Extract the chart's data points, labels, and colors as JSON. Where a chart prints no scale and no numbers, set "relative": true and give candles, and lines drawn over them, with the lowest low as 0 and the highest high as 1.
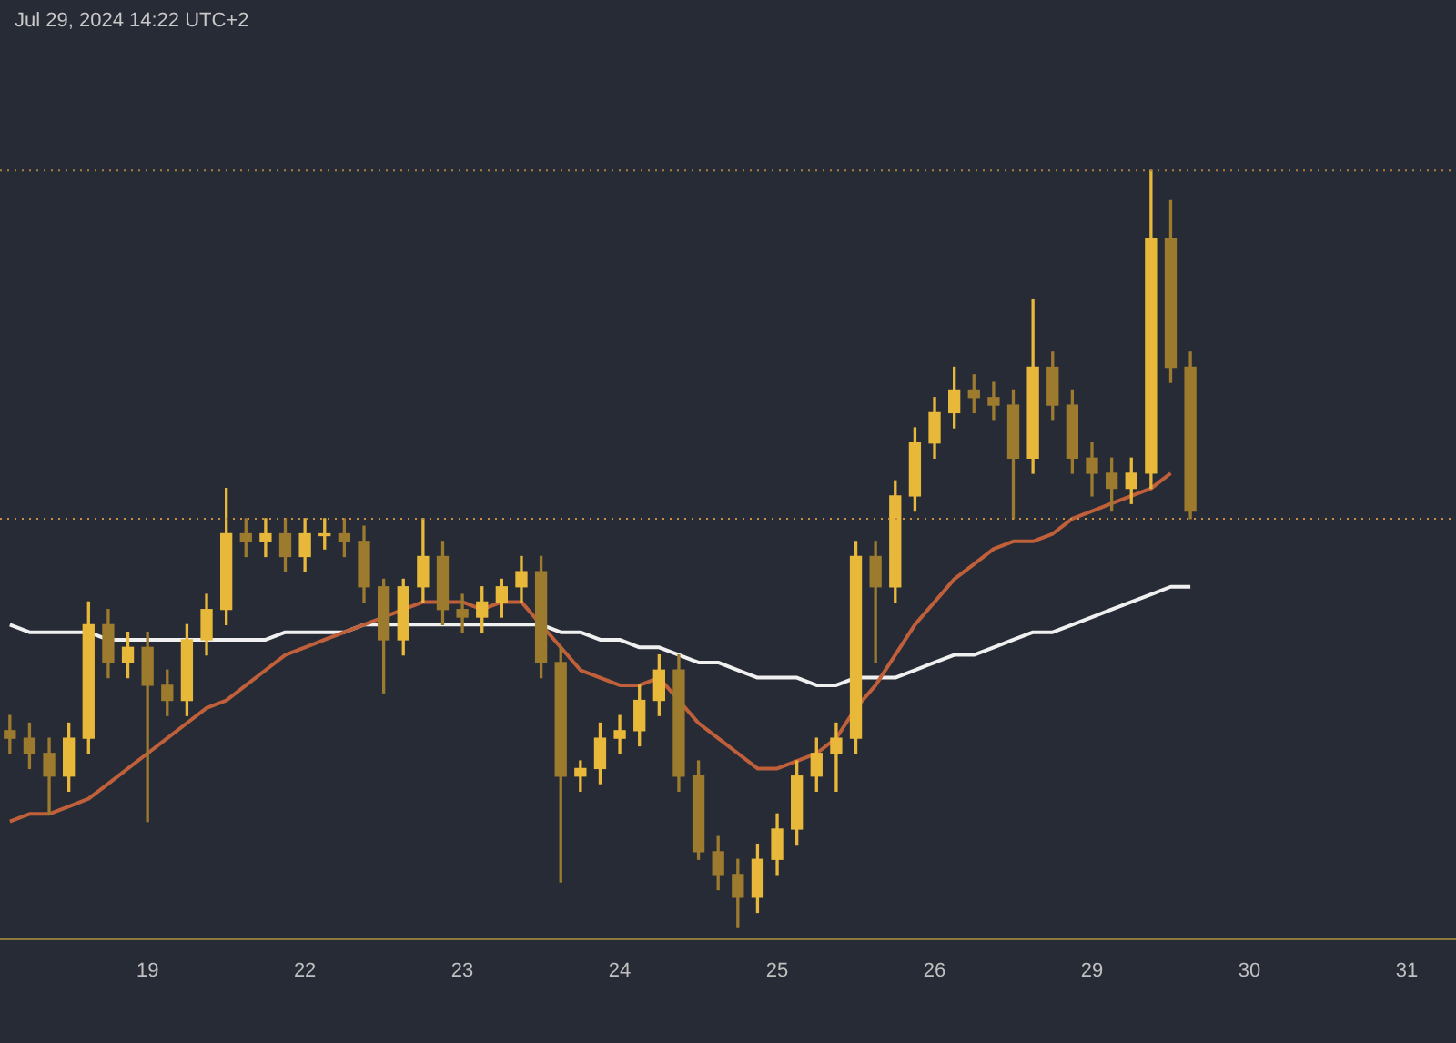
{
  "chart_data": {
    "type": "candlestick",
    "relative": true,
    "colors": [
      "#9c7a2e",
      "#9c7a2e",
      "#9c7a2e",
      "#e8b83a",
      "#e8b83a",
      "#9c7a2e",
      "#e8b83a",
      "#9c7a2e",
      "#9c7a2e",
      "#e8b83a",
      "#e8b83a",
      "#e8b83a",
      "#9c7a2e",
      "#e8b83a",
      "#9c7a2e",
      "#e8b83a",
      "#e8b83a",
      "#9c7a2e",
      "#9c7a2e",
      "#9c7a2e",
      "#e8b83a",
      "#e8b83a",
      "#9c7a2e",
      "#9c7a2e",
      "#e8b83a",
      "#e8b83a",
      "#e8b83a",
      "#9c7a2e",
      "#9c7a2e",
      "#e8b83a",
      "#e8b83a",
      "#e8b83a",
      "#e8b83a",
      "#e8b83a",
      "#9c7a2e",
      "#9c7a2e",
      "#9c7a2e",
      "#9c7a2e",
      "#e8b83a",
      "#e8b83a",
      "#e8b83a",
      "#e8b83a",
      "#e8b83a",
      "#e8b83a",
      "#9c7a2e",
      "#e8b83a",
      "#e8b83a",
      "#e8b83a",
      "#e8b83a",
      "#9c7a2e",
      "#9c7a2e",
      "#9c7a2e",
      "#e8b83a",
      "#9c7a2e",
      "#9c7a2e",
      "#9c7a2e",
      "#9c7a2e",
      "#e8b83a",
      "#e8b83a",
      "#9c7a2e",
      "#9c7a2e",
      null,
      null,
      null,
      null,
      null,
      null,
      null,
      null,
      null,
      null,
      null,
      null,
      null
    ],
    "annotations": [
      "Jul 29, 2024 14:22 UTC+2"
    ],
    "categories": [
      null,
      null,
      null,
      null,
      null,
      null,
      null,
      "19",
      null,
      null,
      null,
      null,
      null,
      null,
      null,
      "22",
      null,
      null,
      null,
      null,
      null,
      null,
      null,
      "23",
      null,
      null,
      null,
      null,
      null,
      null,
      null,
      "24",
      null,
      null,
      null,
      null,
      null,
      null,
      null,
      "25",
      null,
      null,
      null,
      null,
      null,
      null,
      null,
      "26",
      null,
      null,
      null,
      null,
      null,
      null,
      null,
      "29",
      null,
      null,
      null,
      null,
      null,
      null,
      null,
      "30",
      null,
      null,
      null,
      null,
      null,
      null,
      null,
      "31",
      null,
      null
    ],
    "ohlc": [
      [
        0.26,
        0.28,
        0.23,
        0.25
      ],
      [
        0.25,
        0.27,
        0.21,
        0.23
      ],
      [
        0.23,
        0.25,
        0.15,
        0.2
      ],
      [
        0.2,
        0.27,
        0.18,
        0.25
      ],
      [
        0.25,
        0.43,
        0.23,
        0.4
      ],
      [
        0.4,
        0.42,
        0.33,
        0.35
      ],
      [
        0.35,
        0.39,
        0.33,
        0.37
      ],
      [
        0.37,
        0.39,
        0.14,
        0.32
      ],
      [
        0.32,
        0.34,
        0.28,
        0.3
      ],
      [
        0.3,
        0.4,
        0.28,
        0.38
      ],
      [
        0.38,
        0.44,
        0.36,
        0.42
      ],
      [
        0.42,
        0.58,
        0.4,
        0.52
      ],
      [
        0.52,
        0.54,
        0.49,
        0.51
      ],
      [
        0.51,
        0.54,
        0.49,
        0.52
      ],
      [
        0.52,
        0.54,
        0.47,
        0.49
      ],
      [
        0.49,
        0.54,
        0.47,
        0.52
      ],
      [
        0.52,
        0.54,
        0.5,
        0.52
      ],
      [
        0.52,
        0.54,
        0.49,
        0.51
      ],
      [
        0.51,
        0.53,
        0.43,
        0.45
      ],
      [
        0.45,
        0.46,
        0.31,
        0.38
      ],
      [
        0.38,
        0.46,
        0.36,
        0.45
      ],
      [
        0.45,
        0.54,
        0.43,
        0.49
      ],
      [
        0.49,
        0.51,
        0.4,
        0.42
      ],
      [
        0.42,
        0.44,
        0.39,
        0.41
      ],
      [
        0.41,
        0.45,
        0.39,
        0.43
      ],
      [
        0.43,
        0.46,
        0.41,
        0.45
      ],
      [
        0.45,
        0.49,
        0.43,
        0.47
      ],
      [
        0.47,
        0.49,
        0.33,
        0.35
      ],
      [
        0.35,
        0.37,
        0.06,
        0.2
      ],
      [
        0.2,
        0.22,
        0.18,
        0.21
      ],
      [
        0.21,
        0.27,
        0.19,
        0.25
      ],
      [
        0.25,
        0.28,
        0.23,
        0.26
      ],
      [
        0.26,
        0.32,
        0.24,
        0.3
      ],
      [
        0.3,
        0.36,
        0.28,
        0.34
      ],
      [
        0.34,
        0.36,
        0.18,
        0.2
      ],
      [
        0.2,
        0.22,
        0.09,
        0.1
      ],
      [
        0.1,
        0.12,
        0.05,
        0.07
      ],
      [
        0.07,
        0.09,
        0,
        0.04
      ],
      [
        0.04,
        0.11,
        0.02,
        0.09
      ],
      [
        0.09,
        0.15,
        0.07,
        0.13
      ],
      [
        0.13,
        0.22,
        0.11,
        0.2
      ],
      [
        0.2,
        0.25,
        0.18,
        0.23
      ],
      [
        0.23,
        0.27,
        0.18,
        0.25
      ],
      [
        0.25,
        0.51,
        0.23,
        0.49
      ],
      [
        0.49,
        0.51,
        0.35,
        0.45
      ],
      [
        0.45,
        0.59,
        0.43,
        0.57
      ],
      [
        0.57,
        0.66,
        0.55,
        0.64
      ],
      [
        0.64,
        0.7,
        0.62,
        0.68
      ],
      [
        0.68,
        0.74,
        0.66,
        0.71
      ],
      [
        0.71,
        0.73,
        0.68,
        0.7
      ],
      [
        0.7,
        0.72,
        0.67,
        0.69
      ],
      [
        0.69,
        0.71,
        0.54,
        0.62
      ],
      [
        0.62,
        0.83,
        0.6,
        0.74
      ],
      [
        0.74,
        0.76,
        0.67,
        0.69
      ],
      [
        0.69,
        0.71,
        0.6,
        0.62
      ],
      [
        0.62,
        0.64,
        0.57,
        0.6
      ],
      [
        0.6,
        0.62,
        0.55,
        0.58
      ],
      [
        0.58,
        0.62,
        0.56,
        0.6
      ],
      [
        0.6,
        1,
        0.58,
        0.91
      ],
      [
        0.91,
        0.96,
        0.72,
        0.74
      ],
      [
        0.74,
        0.76,
        0.54,
        0.55
      ],
      null,
      null,
      null,
      null,
      null,
      null,
      null,
      null,
      null,
      null,
      null,
      null,
      null
    ],
    "series": [
      {
        "type": "line",
        "color": "#c0603a",
        "values": [
          0.14,
          0.15,
          0.15,
          0.16,
          0.17,
          0.19,
          0.21,
          0.23,
          0.25,
          0.27,
          0.29,
          0.3,
          0.32,
          0.34,
          0.36,
          0.37,
          0.38,
          0.39,
          0.4,
          0.41,
          0.42,
          0.43,
          0.43,
          0.43,
          0.42,
          0.43,
          0.43,
          0.4,
          0.37,
          0.34,
          0.33,
          0.32,
          0.32,
          0.33,
          0.3,
          0.27,
          0.25,
          0.23,
          0.21,
          0.21,
          0.22,
          0.23,
          0.25,
          0.29,
          0.32,
          0.36,
          0.4,
          0.43,
          0.46,
          0.48,
          0.5,
          0.51,
          0.51,
          0.52,
          0.54,
          0.55,
          0.56,
          0.57,
          0.58,
          0.6,
          null,
          null,
          null,
          null,
          null,
          null,
          null,
          null,
          null,
          null,
          null,
          null,
          null,
          null
        ]
      },
      {
        "type": "line",
        "color": "#f0f0f0",
        "values": [
          0.4,
          0.39,
          0.39,
          0.39,
          0.39,
          0.38,
          0.38,
          0.38,
          0.38,
          0.38,
          0.38,
          0.38,
          0.38,
          0.38,
          0.39,
          0.39,
          0.39,
          0.39,
          0.4,
          0.4,
          0.4,
          0.4,
          0.4,
          0.4,
          0.4,
          0.4,
          0.4,
          0.4,
          0.39,
          0.39,
          0.38,
          0.38,
          0.37,
          0.37,
          0.36,
          0.35,
          0.35,
          0.34,
          0.33,
          0.33,
          0.33,
          0.32,
          0.32,
          0.33,
          0.33,
          0.33,
          0.34,
          0.35,
          0.36,
          0.36,
          0.37,
          0.38,
          0.39,
          0.39,
          0.4,
          0.41,
          0.42,
          0.43,
          0.44,
          0.45,
          0.45,
          null,
          null,
          null,
          null,
          null,
          null,
          null,
          null,
          null,
          null,
          null,
          null,
          null
        ]
      }
    ],
    "ref_lines": [
      {
        "axis": "y",
        "value": 1,
        "color": "#b08040",
        "line_style": "dotted"
      },
      {
        "axis": "y",
        "value": 0.54,
        "color": "#c89040",
        "line_style": "dotted"
      }
    ]
  }
}
